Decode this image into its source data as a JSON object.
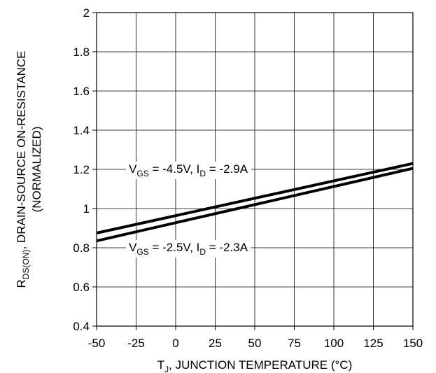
{
  "chart_data": {
    "type": "line",
    "xlabel": {
      "parts": [
        {
          "text": "T",
          "sub": false
        },
        {
          "text": "J",
          "sub": true
        },
        {
          "text": ", JUNCTION TEMPERATURE (°C)",
          "sub": false
        }
      ]
    },
    "ylabel": {
      "line1_parts": [
        {
          "text": "R",
          "sub": false
        },
        {
          "text": "DS(ON)",
          "sub": true
        },
        {
          "text": ", DRAIN-SOURCE ON-RESISTANCE",
          "sub": false
        }
      ],
      "line2": "(NORMALIZED)"
    },
    "xlim": [
      -50,
      150
    ],
    "ylim": [
      0.4,
      2
    ],
    "xticks": [
      -50,
      -25,
      0,
      25,
      50,
      75,
      100,
      125,
      150
    ],
    "xtick_labels": [
      "-50",
      "-25",
      "0",
      "25",
      "50",
      "75",
      "100",
      "125",
      "150"
    ],
    "yticks": [
      0.4,
      0.6,
      0.8,
      1,
      1.2,
      1.4,
      1.6,
      1.8,
      2
    ],
    "ytick_labels": [
      "0.4",
      "0.6",
      "0.8",
      "1",
      "1.2",
      "1.4",
      "1.6",
      "1.8",
      "2"
    ],
    "grid": true,
    "series": [
      {
        "x": [
          -50,
          150
        ],
        "y": [
          0.875,
          1.23
        ]
      },
      {
        "x": [
          -50,
          150
        ],
        "y": [
          0.835,
          1.205
        ]
      }
    ],
    "annotations": [
      {
        "x": 8,
        "y": 1.2,
        "parts": [
          {
            "text": "V",
            "sub": false
          },
          {
            "text": "GS",
            "sub": true
          },
          {
            "text": " = -4.5V, I",
            "sub": false
          },
          {
            "text": "D",
            "sub": true
          },
          {
            "text": " = -2.9A",
            "sub": false
          }
        ]
      },
      {
        "x": 8,
        "y": 0.8,
        "parts": [
          {
            "text": "V",
            "sub": false
          },
          {
            "text": "GS",
            "sub": true
          },
          {
            "text": " = -2.5V, I",
            "sub": false
          },
          {
            "text": "D",
            "sub": true
          },
          {
            "text": " = -2.3A",
            "sub": false
          }
        ]
      }
    ]
  }
}
